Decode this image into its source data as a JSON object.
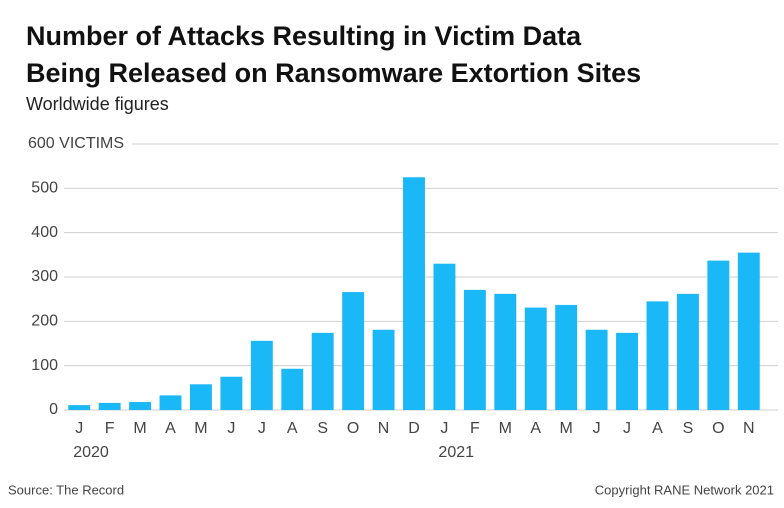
{
  "chart_data": {
    "type": "bar",
    "title": [
      "Number of Attacks Resulting in Victim Data",
      "Being Released on Ransomware Extortion Sites"
    ],
    "subtitle": "Worldwide figures",
    "categories": [
      "J",
      "F",
      "M",
      "A",
      "M",
      "J",
      "J",
      "A",
      "S",
      "O",
      "N",
      "D",
      "J",
      "F",
      "M",
      "A",
      "M",
      "J",
      "J",
      "A",
      "S",
      "O",
      "N"
    ],
    "x_groups": [
      {
        "label": "2020",
        "start": 0
      },
      {
        "label": "2021",
        "start": 12
      }
    ],
    "values": [
      11,
      16,
      18,
      33,
      58,
      75,
      156,
      93,
      174,
      266,
      181,
      525,
      330,
      271,
      262,
      231,
      237,
      181,
      174,
      245,
      262,
      337,
      355
    ],
    "color": "#1ab8f7",
    "ylim": [
      0,
      600
    ],
    "yticks": [
      0,
      100,
      200,
      300,
      400,
      500,
      {
        "value": 600,
        "label": "600 VICTIMS"
      }
    ],
    "grid": true,
    "source": "Source: The Record",
    "copyright": "Copyright RANE Network 2021"
  }
}
